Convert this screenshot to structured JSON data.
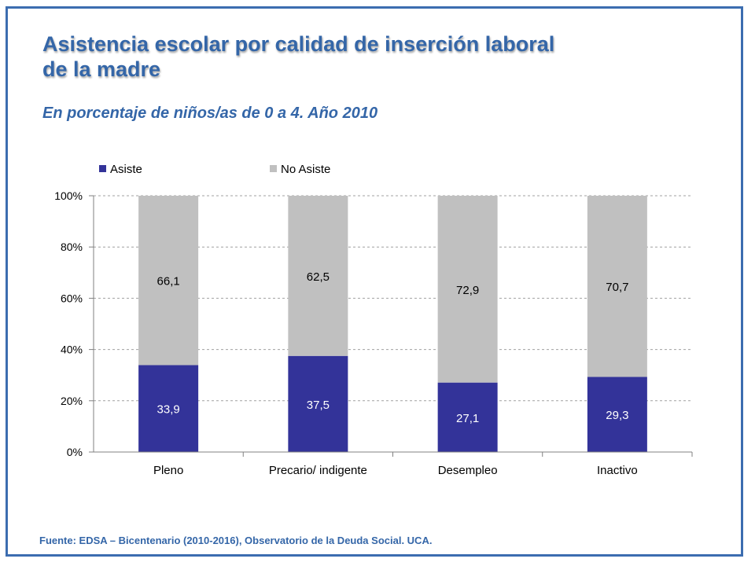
{
  "header": {
    "title_line1": "Asistencia escolar por calidad de inserción laboral",
    "title_line2": "de la madre",
    "subtitle": "En porcentaje de niños/as de 0 a 4. Año 2010"
  },
  "footer": {
    "source": "Fuente:  EDSA – Bicentenario (2010-2016),  Observatorio de la Deuda Social. UCA."
  },
  "colors": {
    "frame": "#3c6db0",
    "title": "#3466a8",
    "asiste": "#333399",
    "no_asiste": "#c0c0c0",
    "grid": "#a0a0a0"
  },
  "chart_data": {
    "type": "bar",
    "stacked": true,
    "categories": [
      "Pleno",
      "Precario/ indigente",
      "Desempleo",
      "Inactivo"
    ],
    "series": [
      {
        "name": "Asiste",
        "values": [
          33.9,
          37.5,
          27.1,
          29.3
        ],
        "labels": [
          "33,9",
          "37,5",
          "27,1",
          "29,3"
        ],
        "color": "#333399",
        "label_color": "#ffffff"
      },
      {
        "name": "No Asiste",
        "values": [
          66.1,
          62.5,
          72.9,
          70.7
        ],
        "labels": [
          "66,1",
          "62,5",
          "72,9",
          "70,7"
        ],
        "color": "#c0c0c0",
        "label_color": "#000000"
      }
    ],
    "yticks": [
      "0%",
      "20%",
      "40%",
      "60%",
      "80%",
      "100%"
    ],
    "ylim": [
      0,
      100
    ],
    "grid": true,
    "legend_position": "top-left"
  }
}
